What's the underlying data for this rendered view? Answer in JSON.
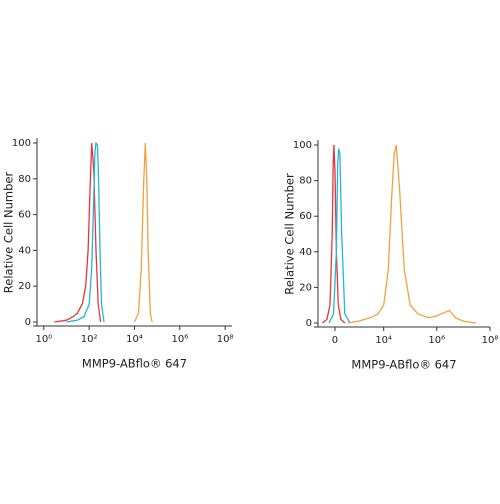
{
  "chart_data": [
    {
      "type": "line",
      "xscale": "log",
      "xlabel": "MMP9-ABflo® 647",
      "ylabel": "Relative Cell Number",
      "xlim": [
        0.5,
        200000000
      ],
      "ylim": [
        0,
        100
      ],
      "xticks": [
        {
          "value": 1,
          "label": "10⁰"
        },
        {
          "value": 100,
          "label": "10²"
        },
        {
          "value": 10000,
          "label": "10⁴"
        },
        {
          "value": 1000000,
          "label": "10⁶"
        },
        {
          "value": 100000000,
          "label": "10⁸"
        }
      ],
      "yticks": [
        0,
        20,
        40,
        60,
        80,
        100
      ],
      "series": [
        {
          "color": "#e8343a",
          "x": [
            3,
            10,
            20,
            30,
            50,
            70,
            90,
            110,
            130,
            160,
            200,
            250,
            320
          ],
          "values": [
            0,
            1,
            3,
            5,
            10,
            20,
            40,
            75,
            100,
            85,
            40,
            10,
            0
          ]
        },
        {
          "color": "#1fb8d8",
          "x": [
            10,
            30,
            60,
            100,
            130,
            160,
            180,
            200,
            230,
            260,
            300,
            350,
            450
          ],
          "values": [
            0,
            1,
            3,
            10,
            30,
            70,
            95,
            100,
            99,
            80,
            40,
            10,
            0
          ]
        },
        {
          "color": "#f0a040",
          "x": [
            10000,
            15000,
            20000,
            25000,
            30000,
            35000,
            40000,
            50000,
            60000
          ],
          "values": [
            0,
            5,
            30,
            75,
            100,
            80,
            40,
            5,
            0
          ]
        }
      ]
    },
    {
      "type": "line",
      "xscale": "symlog",
      "xlabel": "MMP9-ABflo® 647",
      "ylabel": "Relative Cell Number",
      "xlim": [
        -500,
        100000000
      ],
      "ylim": [
        0,
        100
      ],
      "xticks": [
        0,
        {
          "value": 10000,
          "label": "10⁴"
        },
        {
          "value": 1000000,
          "label": "10⁶"
        },
        {
          "value": 100000000,
          "label": "10⁸"
        }
      ],
      "yticks": [
        0,
        20,
        40,
        60,
        80,
        100
      ],
      "series": [
        {
          "color": "#e8343a",
          "x": [
            -300,
            -150,
            -80,
            -40,
            -25,
            -15,
            0,
            20,
            50,
            100,
            200
          ],
          "values": [
            0,
            2,
            10,
            50,
            90,
            100,
            85,
            40,
            10,
            2,
            0
          ]
        },
        {
          "color": "#1fb8d8",
          "x": [
            -100,
            -20,
            20,
            40,
            60,
            80,
            120,
            200,
            400
          ],
          "values": [
            0,
            5,
            40,
            90,
            98,
            95,
            50,
            5,
            0
          ]
        },
        {
          "color": "#f0a040",
          "x": [
            300,
            1000,
            3000,
            6000,
            10000,
            15000,
            20000,
            25000,
            30000,
            40000,
            60000,
            100000,
            200000,
            500000,
            1000000,
            2000000,
            3000000,
            5000000,
            10000000,
            30000000
          ],
          "values": [
            0,
            1,
            3,
            5,
            10,
            30,
            70,
            95,
            100,
            75,
            30,
            10,
            5,
            3,
            4,
            6,
            7,
            3,
            1,
            0
          ]
        }
      ]
    }
  ]
}
